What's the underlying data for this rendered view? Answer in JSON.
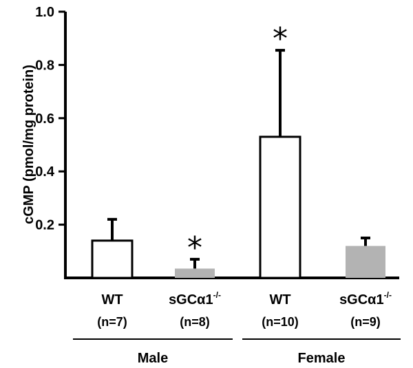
{
  "chart_data": {
    "type": "bar",
    "ylabel": "cGMP (pmol/mg protein)",
    "ylim": [
      0,
      1.0
    ],
    "yticks": [
      {
        "value": 0.2,
        "label": "0.2"
      },
      {
        "value": 0.4,
        "label": "0.4"
      },
      {
        "value": 0.6,
        "label": "0.6"
      },
      {
        "value": 0.8,
        "label": "0.8"
      },
      {
        "value": 1.0,
        "label": "1.0"
      }
    ],
    "bars": [
      {
        "category": "WT",
        "genotype_sup": "",
        "n_label": "(n=7)",
        "group": "Male",
        "value": 0.14,
        "error": 0.08,
        "significant": false,
        "color": "#ffffff"
      },
      {
        "category": "sGCα1",
        "genotype_sup": "-/-",
        "n_label": "(n=8)",
        "group": "Male",
        "value": 0.035,
        "error": 0.035,
        "significant": true,
        "color": "#b3b3b3"
      },
      {
        "category": "WT",
        "genotype_sup": "",
        "n_label": "(n=10)",
        "group": "Female",
        "value": 0.53,
        "error": 0.325,
        "significant": true,
        "color": "#ffffff"
      },
      {
        "category": "sGCα1",
        "genotype_sup": "-/-",
        "n_label": "(n=9)",
        "group": "Female",
        "value": 0.12,
        "error": 0.03,
        "significant": false,
        "color": "#b3b3b3"
      }
    ],
    "groups": [
      "Male",
      "Female"
    ],
    "significance_marker": "*"
  }
}
